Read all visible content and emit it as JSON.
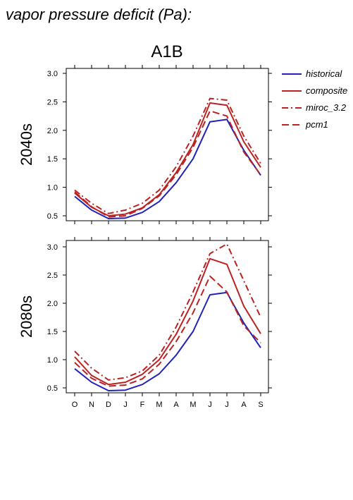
{
  "figure_title": "vapor pressure deficit (Pa):",
  "chart_data": {
    "type": "line",
    "title": "A1B",
    "categories": [
      "O",
      "N",
      "D",
      "J",
      "F",
      "M",
      "A",
      "M",
      "J",
      "J",
      "A",
      "S"
    ],
    "legend": [
      {
        "name": "historical",
        "color": "#2222bb",
        "dash": "solid"
      },
      {
        "name": "composite",
        "color": "#bb2222",
        "dash": "solid"
      },
      {
        "name": "miroc_3.2",
        "color": "#bb2222",
        "dash": "dashdot"
      },
      {
        "name": "pcm1",
        "color": "#bb2222",
        "dash": "dash"
      }
    ],
    "legend_position": "top-right",
    "panels": [
      {
        "label": "2040s",
        "ylim": [
          0.4,
          3.1
        ],
        "yticks": [
          "0.5",
          "1.0",
          "1.5",
          "2.0",
          "2.5",
          "3.0"
        ],
        "series": [
          {
            "name": "historical",
            "values": [
              0.84,
              0.6,
              0.45,
              0.46,
              0.56,
              0.75,
              1.08,
              1.5,
              2.15,
              2.19,
              1.65,
              1.21
            ]
          },
          {
            "name": "composite",
            "values": [
              0.9,
              0.65,
              0.5,
              0.53,
              0.64,
              0.87,
              1.26,
              1.75,
              2.48,
              2.44,
              1.8,
              1.35
            ]
          },
          {
            "name": "miroc_3.2",
            "values": [
              0.95,
              0.72,
              0.54,
              0.6,
              0.72,
              0.95,
              1.36,
              1.9,
              2.56,
              2.53,
              1.9,
              1.42
            ]
          },
          {
            "name": "pcm1",
            "values": [
              0.92,
              0.66,
              0.48,
              0.5,
              0.63,
              0.85,
              1.22,
              1.7,
              2.34,
              2.25,
              1.62,
              1.22
            ]
          }
        ]
      },
      {
        "label": "2080s",
        "ylim": [
          0.4,
          3.1
        ],
        "yticks": [
          "0.5",
          "1.0",
          "1.5",
          "2.0",
          "2.5",
          "3.0"
        ],
        "series": [
          {
            "name": "historical",
            "values": [
              0.84,
              0.6,
              0.45,
              0.46,
              0.56,
              0.75,
              1.08,
              1.5,
              2.15,
              2.19,
              1.65,
              1.21
            ]
          },
          {
            "name": "composite",
            "values": [
              1.05,
              0.72,
              0.56,
              0.6,
              0.74,
              1.0,
              1.45,
              2.04,
              2.79,
              2.69,
              1.95,
              1.46
            ]
          },
          {
            "name": "miroc_3.2",
            "values": [
              1.15,
              0.85,
              0.64,
              0.68,
              0.8,
              1.08,
              1.58,
              2.2,
              2.88,
              3.05,
              2.4,
              1.75
            ]
          },
          {
            "name": "pcm1",
            "values": [
              0.95,
              0.67,
              0.53,
              0.55,
              0.66,
              0.92,
              1.32,
              1.83,
              2.48,
              2.2,
              1.6,
              1.3
            ]
          }
        ]
      }
    ]
  }
}
